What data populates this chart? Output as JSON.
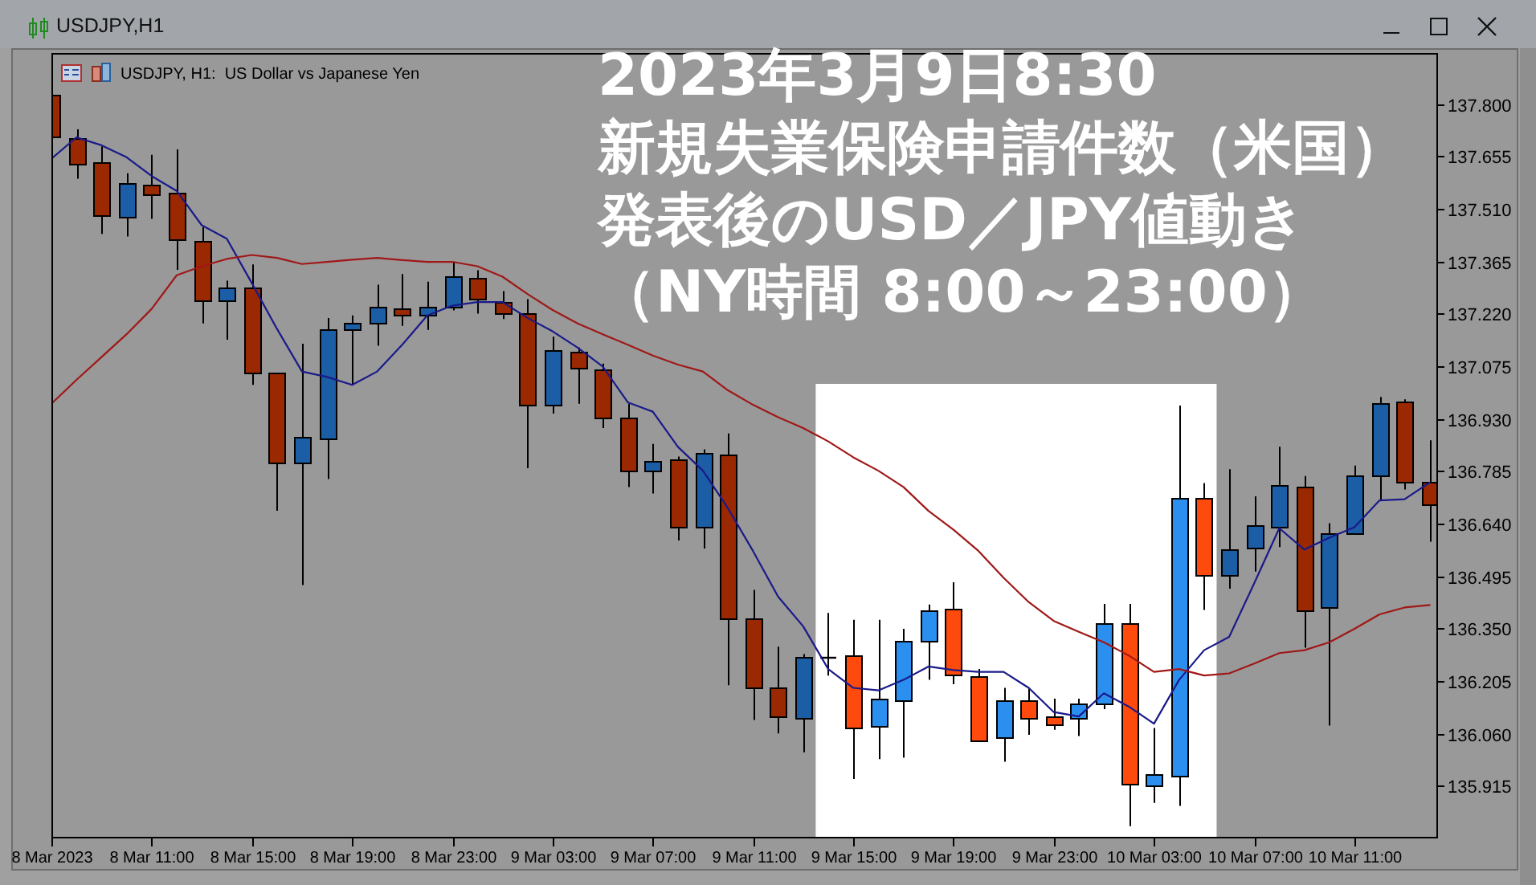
{
  "chart_data": {
    "type": "candlestick",
    "title": "2023年3月9日8:30新規失業保険申請件数（米国）発表後のUSD／JPY値動き（NY時間 8:00～23:00）",
    "subtitle": "USDJPY, H1:  US Dollar vs Japanese Yen",
    "annotations": [
      "USDJPY,H1"
    ],
    "x": [
      "2023-03-08T07:00",
      "2023-03-08T08:00",
      "2023-03-08T09:00",
      "2023-03-08T10:00",
      "2023-03-08T11:00",
      "2023-03-08T12:00",
      "2023-03-08T13:00",
      "2023-03-08T14:00",
      "2023-03-08T15:00",
      "2023-03-08T16:00",
      "2023-03-08T17:00",
      "2023-03-08T18:00",
      "2023-03-08T19:00",
      "2023-03-08T20:00",
      "2023-03-08T21:00",
      "2023-03-08T22:00",
      "2023-03-08T23:00",
      "2023-03-09T00:00",
      "2023-03-09T01:00",
      "2023-03-09T02:00",
      "2023-03-09T03:00",
      "2023-03-09T04:00",
      "2023-03-09T05:00",
      "2023-03-09T06:00",
      "2023-03-09T07:00",
      "2023-03-09T08:00",
      "2023-03-09T09:00",
      "2023-03-09T10:00",
      "2023-03-09T11:00",
      "2023-03-09T12:00",
      "2023-03-09T13:00",
      "2023-03-09T14:00",
      "2023-03-09T15:00",
      "2023-03-09T16:00",
      "2023-03-09T17:00",
      "2023-03-09T18:00",
      "2023-03-09T19:00",
      "2023-03-09T20:00",
      "2023-03-09T21:00",
      "2023-03-09T22:00",
      "2023-03-09T23:00",
      "2023-03-10T00:00",
      "2023-03-10T01:00",
      "2023-03-10T02:00",
      "2023-03-10T03:00",
      "2023-03-10T04:00",
      "2023-03-10T05:00",
      "2023-03-10T06:00",
      "2023-03-10T07:00",
      "2023-03-10T08:00",
      "2023-03-10T09:00",
      "2023-03-10T10:00",
      "2023-03-10T11:00",
      "2023-03-10T12:00",
      "2023-03-10T13:00",
      "2023-03-10T14:00"
    ],
    "ohlc": [
      [
        137.825,
        137.825,
        137.711,
        137.711
      ],
      [
        137.704,
        137.729,
        137.593,
        137.634
      ],
      [
        137.64,
        137.682,
        137.44,
        137.492
      ],
      [
        137.488,
        137.608,
        137.433,
        137.581
      ],
      [
        137.576,
        137.659,
        137.482,
        137.55
      ],
      [
        137.556,
        137.674,
        137.341,
        137.425
      ],
      [
        137.422,
        137.459,
        137.193,
        137.257
      ],
      [
        137.257,
        137.311,
        137.148,
        137.294
      ],
      [
        137.292,
        137.356,
        137.023,
        137.057
      ],
      [
        137.057,
        137.057,
        136.675,
        136.808
      ],
      [
        136.808,
        137.137,
        136.47,
        136.879
      ],
      [
        136.875,
        137.208,
        136.763,
        137.175
      ],
      [
        137.175,
        137.215,
        137.023,
        137.193
      ],
      [
        137.193,
        137.3,
        137.131,
        137.237
      ],
      [
        137.234,
        137.329,
        137.186,
        137.217
      ],
      [
        137.217,
        137.308,
        137.175,
        137.237
      ],
      [
        137.237,
        137.363,
        137.229,
        137.323
      ],
      [
        137.319,
        137.34,
        137.22,
        137.26
      ],
      [
        137.252,
        137.282,
        137.205,
        137.22
      ],
      [
        137.22,
        137.26,
        136.793,
        136.968
      ],
      [
        136.968,
        137.156,
        136.944,
        137.119
      ],
      [
        137.114,
        137.126,
        136.971,
        137.07
      ],
      [
        137.066,
        137.082,
        136.904,
        136.932
      ],
      [
        136.934,
        136.971,
        136.741,
        136.786
      ],
      [
        136.786,
        136.86,
        136.723,
        136.815
      ],
      [
        136.818,
        136.825,
        136.593,
        136.633
      ],
      [
        136.633,
        136.845,
        136.571,
        136.835
      ],
      [
        136.83,
        136.889,
        136.193,
        136.376
      ],
      [
        136.377,
        136.457,
        136.097,
        136.186
      ],
      [
        136.186,
        136.3,
        136.06,
        136.109
      ],
      [
        136.105,
        136.279,
        136.008,
        136.27
      ],
      [
        136.27,
        136.393,
        136.22,
        136.27
      ],
      [
        136.275,
        136.374,
        135.934,
        136.078
      ],
      [
        136.082,
        136.374,
        135.989,
        136.156
      ],
      [
        136.153,
        136.349,
        135.993,
        136.315
      ],
      [
        136.315,
        136.416,
        136.208,
        136.401
      ],
      [
        136.404,
        136.478,
        136.196,
        136.223
      ],
      [
        136.216,
        136.238,
        136.038,
        136.042
      ],
      [
        136.048,
        136.186,
        135.982,
        136.153
      ],
      [
        136.153,
        136.186,
        136.056,
        136.105
      ],
      [
        136.106,
        136.156,
        136.07,
        136.085
      ],
      [
        136.105,
        136.156,
        136.053,
        136.142
      ],
      [
        136.142,
        136.418,
        136.127,
        136.364
      ],
      [
        136.364,
        136.418,
        135.804,
        135.919
      ],
      [
        135.915,
        136.075,
        135.868,
        135.946
      ],
      [
        135.945,
        136.966,
        135.86,
        136.709
      ],
      [
        136.709,
        136.752,
        136.401,
        136.497
      ],
      [
        136.497,
        136.79,
        136.46,
        136.568
      ],
      [
        136.571,
        136.715,
        136.507,
        136.635
      ],
      [
        136.63,
        136.852,
        136.575,
        136.746
      ],
      [
        136.741,
        136.771,
        136.297,
        136.398
      ],
      [
        136.408,
        136.641,
        136.082,
        136.612
      ],
      [
        136.615,
        136.8,
        136.61,
        136.774
      ],
      [
        136.775,
        136.99,
        136.704,
        136.974
      ],
      [
        136.978,
        136.983,
        136.734,
        136.753
      ],
      [
        136.753,
        136.87,
        136.59,
        136.694
      ]
    ],
    "colors": [
      "#9a2800",
      "#9a2800",
      "#9a2800",
      "#1b5ea6",
      "#9a2800",
      "#9a2800",
      "#9a2800",
      "#1b5ea6",
      "#9a2800",
      "#9a2800",
      "#1b5ea6",
      "#1b5ea6",
      "#1b5ea6",
      "#1b5ea6",
      "#9a2800",
      "#1b5ea6",
      "#1b5ea6",
      "#9a2800",
      "#9a2800",
      "#9a2800",
      "#1b5ea6",
      "#9a2800",
      "#9a2800",
      "#9a2800",
      "#1b5ea6",
      "#9a2800",
      "#1b5ea6",
      "#9a2800",
      "#9a2800",
      "#9a2800",
      "#1b5ea6",
      "#000000",
      "#ff4a0d",
      "#2b8ff0",
      "#2b8ff0",
      "#2b8ff0",
      "#ff4a0d",
      "#ff4a0d",
      "#2b8ff0",
      "#ff4a0d",
      "#ff4a0d",
      "#2b8ff0",
      "#2b8ff0",
      "#ff4a0d",
      "#2b8ff0",
      "#2b8ff0",
      "#ff4a0d",
      "#1b5ea6",
      "#1b5ea6",
      "#1b5ea6",
      "#9a2800",
      "#1b5ea6",
      "#1b5ea6",
      "#1b5ea6",
      "#9a2800",
      "#9a2800"
    ],
    "series": [
      {
        "type": "line",
        "color": "#1a1a8a",
        "values": [
          137.648,
          137.707,
          137.685,
          137.652,
          137.6,
          137.559,
          137.464,
          137.427,
          137.304,
          137.178,
          137.06,
          137.045,
          137.023,
          137.06,
          137.134,
          137.215,
          137.242,
          137.252,
          137.252,
          137.208,
          137.171,
          137.126,
          137.074,
          136.975,
          136.949,
          136.852,
          136.786,
          136.682,
          136.564,
          136.438,
          136.356,
          136.238,
          136.186,
          136.179,
          136.208,
          136.245,
          136.235,
          136.23,
          136.23,
          136.186,
          136.119,
          136.107,
          136.171,
          136.134,
          136.087,
          136.208,
          136.29,
          136.327,
          136.475,
          136.627,
          136.568,
          136.601,
          136.63,
          136.704,
          136.707,
          136.753
        ]
      },
      {
        "type": "line",
        "color": "#a01818",
        "values": [
          136.971,
          137.037,
          137.1,
          137.163,
          137.233,
          137.326,
          137.351,
          137.371,
          137.382,
          137.374,
          137.357,
          137.363,
          137.369,
          137.374,
          137.368,
          137.363,
          137.363,
          137.351,
          137.322,
          137.274,
          137.23,
          137.193,
          137.163,
          137.134,
          137.104,
          137.079,
          137.06,
          137.008,
          136.968,
          136.934,
          136.904,
          136.867,
          136.823,
          136.786,
          136.741,
          136.675,
          136.623,
          136.564,
          136.49,
          136.423,
          136.371,
          136.341,
          136.312,
          136.275,
          136.23,
          136.238,
          136.22,
          136.226,
          136.253,
          136.282,
          136.29,
          136.312,
          136.349,
          136.389,
          136.408,
          136.415
        ]
      }
    ],
    "bands": [
      {
        "axis": "x",
        "from": "2023-03-09T13:30",
        "to": "2023-03-10T05:30",
        "color": "#ffffff"
      }
    ],
    "xlim": [
      "2023-03-08T07:00",
      "2023-03-10T14:20"
    ],
    "xticks": [
      {
        "value": "2023-03-08T07:00",
        "label": "8 Mar 2023"
      },
      {
        "value": "2023-03-08T11:00",
        "label": "8 Mar 11:00"
      },
      {
        "value": "2023-03-08T15:00",
        "label": "8 Mar 15:00"
      },
      {
        "value": "2023-03-08T19:00",
        "label": "8 Mar 19:00"
      },
      {
        "value": "2023-03-08T23:00",
        "label": "8 Mar 23:00"
      },
      {
        "value": "2023-03-09T03:00",
        "label": "9 Mar 03:00"
      },
      {
        "value": "2023-03-09T07:00",
        "label": "9 Mar 07:00"
      },
      {
        "value": "2023-03-09T11:00",
        "label": "9 Mar 11:00"
      },
      {
        "value": "2023-03-09T15:00",
        "label": "9 Mar 15:00"
      },
      {
        "value": "2023-03-09T19:00",
        "label": "9 Mar 19:00"
      },
      {
        "value": "2023-03-09T23:00",
        "label": "9 Mar 23:00"
      },
      {
        "value": "2023-03-10T03:00",
        "label": "10 Mar 03:00"
      },
      {
        "value": "2023-03-10T07:00",
        "label": "10 Mar 07:00"
      },
      {
        "value": "2023-03-10T11:00",
        "label": "10 Mar 11:00"
      }
    ],
    "ylim": [
      135.77,
      137.94
    ],
    "yticks": [
      {
        "value": 137.8,
        "label": "137.800"
      },
      137.655,
      {
        "value": 137.51,
        "label": "137.510"
      },
      137.365,
      {
        "value": 137.22,
        "label": "137.220"
      },
      137.075,
      {
        "value": 136.93,
        "label": "136.930"
      },
      136.785,
      {
        "value": 136.64,
        "label": "136.640"
      },
      136.495,
      {
        "value": 136.35,
        "label": "136.350"
      },
      136.205,
      {
        "value": 136.06,
        "label": "136.060"
      },
      135.915
    ]
  }
}
